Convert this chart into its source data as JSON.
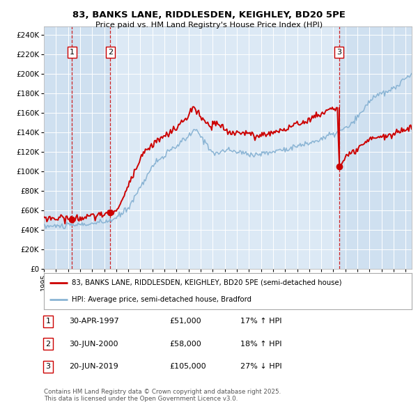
{
  "title1": "83, BANKS LANE, RIDDLESDEN, KEIGHLEY, BD20 5PE",
  "title2": "Price paid vs. HM Land Registry's House Price Index (HPI)",
  "ytick_vals": [
    0,
    20000,
    40000,
    60000,
    80000,
    100000,
    120000,
    140000,
    160000,
    180000,
    200000,
    220000,
    240000
  ],
  "ylim": [
    0,
    248000
  ],
  "xlim_start": 1995.0,
  "xlim_end": 2025.5,
  "sale_dates": [
    1997.33,
    2000.5,
    2019.47
  ],
  "sale_prices": [
    51000,
    58000,
    105000
  ],
  "sale_labels": [
    "1",
    "2",
    "3"
  ],
  "sale3_top": 165000,
  "legend_line1": "83, BANKS LANE, RIDDLESDEN, KEIGHLEY, BD20 5PE (semi-detached house)",
  "legend_line2": "HPI: Average price, semi-detached house, Bradford",
  "table_rows": [
    [
      "1",
      "30-APR-1997",
      "£51,000",
      "17% ↑ HPI"
    ],
    [
      "2",
      "30-JUN-2000",
      "£58,000",
      "18% ↑ HPI"
    ],
    [
      "3",
      "20-JUN-2019",
      "£105,000",
      "27% ↓ HPI"
    ]
  ],
  "footer": "Contains HM Land Registry data © Crown copyright and database right 2025.\nThis data is licensed under the Open Government Licence v3.0.",
  "plot_bg": "#dce9f5",
  "shade_band": "#c8dcef",
  "grid_color": "#ffffff",
  "line_color_red": "#cc0000",
  "line_color_blue": "#8ab4d4",
  "vline_color": "#cc0000",
  "xtick_years": [
    1995,
    1996,
    1997,
    1998,
    1999,
    2000,
    2001,
    2002,
    2003,
    2004,
    2005,
    2006,
    2007,
    2008,
    2009,
    2010,
    2011,
    2012,
    2013,
    2014,
    2015,
    2016,
    2017,
    2018,
    2019,
    2020,
    2021,
    2022,
    2023,
    2024,
    2025
  ]
}
